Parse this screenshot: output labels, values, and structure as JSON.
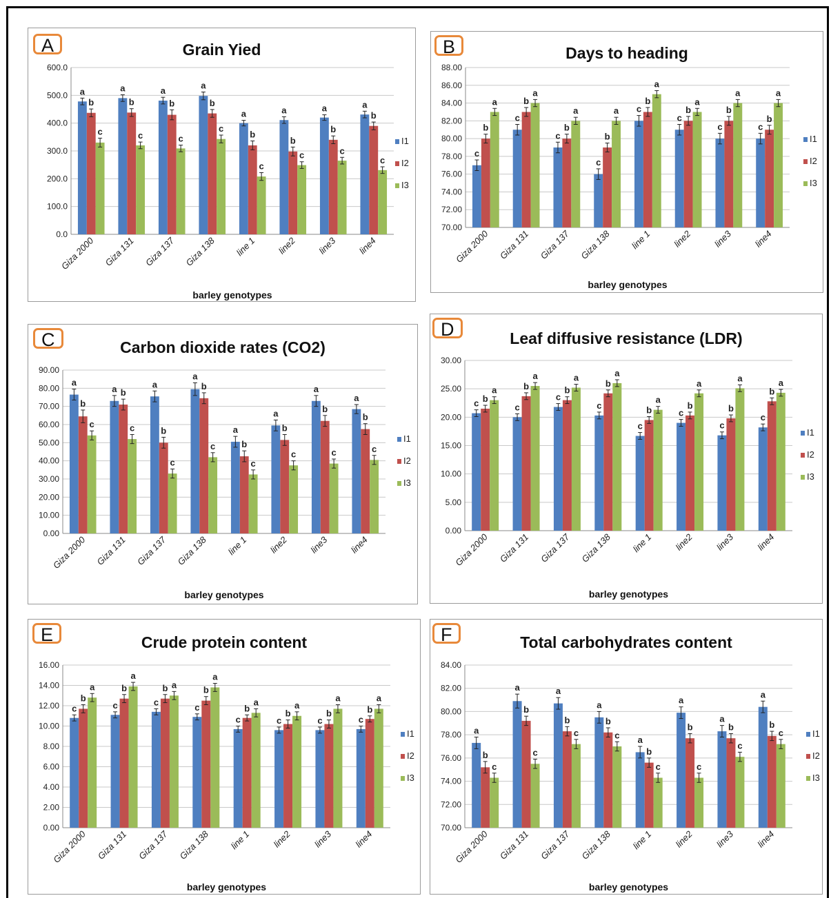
{
  "colors": {
    "I1": "#4f7fc0",
    "I2": "#c0504d",
    "I3": "#9bbb59"
  },
  "chart_data": [
    {
      "panel": "A",
      "type": "bar",
      "title": "Grain Yied",
      "xlabel": "barley genotypes",
      "ylabel": "",
      "categories": [
        "Giza 2000",
        "Giza 131",
        "Giza 137",
        "Giza 138",
        "line 1",
        "line2",
        "line3",
        "line4"
      ],
      "ylim": [
        0,
        600
      ],
      "ytick_step": 100,
      "ytick_decimals": 1,
      "legend_position": "right",
      "series": [
        {
          "name": "I1",
          "values": [
            478,
            490,
            481,
            498,
            400,
            411,
            420,
            431
          ],
          "errors": [
            12,
            12,
            12,
            14,
            10,
            12,
            10,
            12
          ],
          "letters": [
            "a",
            "a",
            "a",
            "a",
            "a",
            "a",
            "a",
            "a"
          ]
        },
        {
          "name": "I2",
          "values": [
            437,
            438,
            430,
            435,
            320,
            298,
            340,
            390
          ],
          "errors": [
            14,
            14,
            18,
            14,
            16,
            16,
            14,
            14
          ],
          "letters": [
            "b",
            "b",
            "b",
            "b",
            "b",
            "b",
            "b",
            "b"
          ]
        },
        {
          "name": "I3",
          "values": [
            330,
            320,
            309,
            343,
            208,
            249,
            265,
            231
          ],
          "errors": [
            16,
            12,
            12,
            14,
            14,
            12,
            12,
            12
          ],
          "letters": [
            "c",
            "c",
            "c",
            "c",
            "c",
            "c",
            "c",
            "c"
          ]
        }
      ]
    },
    {
      "panel": "B",
      "type": "bar",
      "title": "Days to heading",
      "xlabel": "barley genotypes",
      "ylabel": "",
      "categories": [
        "Giza 2000",
        "Giza 131",
        "Giza 137",
        "Giza 138",
        "line 1",
        "line2",
        "line3",
        "line4"
      ],
      "ylim": [
        70,
        88
      ],
      "ytick_step": 2,
      "ytick_decimals": 2,
      "legend_position": "right",
      "series": [
        {
          "name": "I1",
          "values": [
            77,
            81,
            79,
            76,
            82,
            81,
            80,
            80
          ],
          "errors": [
            0.6,
            0.6,
            0.6,
            0.6,
            0.6,
            0.6,
            0.6,
            0.6
          ],
          "letters": [
            "c",
            "c",
            "c",
            "c",
            "c",
            "c",
            "c",
            "c"
          ]
        },
        {
          "name": "I2",
          "values": [
            80,
            83,
            80,
            79,
            83,
            82,
            82,
            81
          ],
          "errors": [
            0.5,
            0.5,
            0.5,
            0.5,
            0.5,
            0.5,
            0.5,
            0.5
          ],
          "letters": [
            "b",
            "b",
            "b",
            "b",
            "b",
            "b",
            "b",
            "b"
          ]
        },
        {
          "name": "I3",
          "values": [
            83,
            84,
            82,
            82,
            85,
            83,
            84,
            84
          ],
          "errors": [
            0.4,
            0.4,
            0.4,
            0.4,
            0.4,
            0.4,
            0.4,
            0.4
          ],
          "letters": [
            "a",
            "a",
            "a",
            "a",
            "a",
            "a",
            "a",
            "a"
          ]
        }
      ]
    },
    {
      "panel": "C",
      "type": "bar",
      "title": "Carbon dioxide rates (CO2)",
      "xlabel": "barley genotypes",
      "ylabel": "",
      "categories": [
        "Giza 2000",
        "Giza 131",
        "Giza 137",
        "Giza 138",
        "line 1",
        "line2",
        "line3",
        "line4"
      ],
      "ylim": [
        0,
        90
      ],
      "ytick_step": 10,
      "ytick_decimals": 2,
      "legend_position": "right",
      "series": [
        {
          "name": "I1",
          "values": [
            76.5,
            73,
            75.5,
            79.5,
            50.5,
            59.5,
            73,
            68.5
          ],
          "errors": [
            3,
            3,
            3,
            3.5,
            3,
            3,
            3,
            2.5
          ],
          "letters": [
            "a",
            "a",
            "a",
            "a",
            "a",
            "a",
            "a",
            "a"
          ]
        },
        {
          "name": "I2",
          "values": [
            64.5,
            71,
            50,
            74.5,
            42.5,
            51.5,
            62,
            57.5
          ],
          "errors": [
            3.5,
            3,
            3,
            3,
            3,
            3,
            3,
            3
          ],
          "letters": [
            "b",
            "b",
            "b",
            "b",
            "b",
            "b",
            "b",
            "b"
          ]
        },
        {
          "name": "I3",
          "values": [
            54,
            52,
            33,
            42,
            32.5,
            37.5,
            38.5,
            40.5
          ],
          "errors": [
            2.5,
            2.5,
            2.5,
            2.5,
            2.5,
            2.5,
            2.5,
            2.5
          ],
          "letters": [
            "c",
            "c",
            "c",
            "c",
            "c",
            "c",
            "c",
            "c"
          ]
        }
      ]
    },
    {
      "panel": "D",
      "type": "bar",
      "title": "Leaf diffusive resistance  (LDR)",
      "xlabel": "barley genotypes",
      "ylabel": "",
      "categories": [
        "Giza 2000",
        "Giza 131",
        "Giza 137",
        "Giza 138",
        "line 1",
        "line2",
        "line3",
        "line4"
      ],
      "ylim": [
        0,
        30
      ],
      "ytick_step": 5,
      "ytick_decimals": 2,
      "legend_position": "right",
      "series": [
        {
          "name": "I1",
          "values": [
            20.7,
            20,
            21.8,
            20.3,
            16.7,
            19,
            16.8,
            18.2
          ],
          "errors": [
            0.6,
            0.6,
            0.6,
            0.6,
            0.6,
            0.6,
            0.6,
            0.6
          ],
          "letters": [
            "c",
            "c",
            "c",
            "c",
            "c",
            "c",
            "c",
            "c"
          ]
        },
        {
          "name": "I2",
          "values": [
            21.5,
            23.7,
            23,
            24.2,
            19.5,
            20.3,
            19.8,
            22.8
          ],
          "errors": [
            0.6,
            0.6,
            0.6,
            0.6,
            0.6,
            0.6,
            0.6,
            0.6
          ],
          "letters": [
            "b",
            "b",
            "b",
            "b",
            "b",
            "b",
            "b",
            "b"
          ]
        },
        {
          "name": "I3",
          "values": [
            23,
            25.5,
            25.2,
            26,
            21.3,
            24.2,
            25.1,
            24.3
          ],
          "errors": [
            0.6,
            0.6,
            0.6,
            0.6,
            0.6,
            0.6,
            0.6,
            0.6
          ],
          "letters": [
            "a",
            "a",
            "a",
            "a",
            "a",
            "a",
            "a",
            "a"
          ]
        }
      ]
    },
    {
      "panel": "E",
      "type": "bar",
      "title": "Crude protein content",
      "xlabel": "barley genotypes",
      "ylabel": "",
      "categories": [
        "Giza 2000",
        "Giza 131",
        "Giza 137",
        "Giza 138",
        "line 1",
        "line2",
        "line3",
        "line4"
      ],
      "ylim": [
        0,
        16
      ],
      "ytick_step": 2,
      "ytick_decimals": 2,
      "legend_position": "right",
      "series": [
        {
          "name": "I1",
          "values": [
            10.8,
            11.1,
            11.4,
            10.9,
            9.7,
            9.6,
            9.6,
            9.7
          ],
          "errors": [
            0.3,
            0.3,
            0.3,
            0.3,
            0.3,
            0.3,
            0.3,
            0.3
          ],
          "letters": [
            "c",
            "c",
            "c",
            "c",
            "c",
            "c",
            "c",
            "c"
          ]
        },
        {
          "name": "I2",
          "values": [
            11.7,
            12.7,
            12.7,
            12.5,
            10.8,
            10.2,
            10.2,
            10.7
          ],
          "errors": [
            0.4,
            0.4,
            0.4,
            0.4,
            0.3,
            0.4,
            0.4,
            0.3
          ],
          "letters": [
            "b",
            "b",
            "b",
            "b",
            "b",
            "b",
            "b",
            "b"
          ]
        },
        {
          "name": "I3",
          "values": [
            12.8,
            13.9,
            13,
            13.8,
            11.3,
            11,
            11.7,
            11.7
          ],
          "errors": [
            0.4,
            0.4,
            0.4,
            0.4,
            0.4,
            0.4,
            0.4,
            0.4
          ],
          "letters": [
            "a",
            "a",
            "a",
            "a",
            "a",
            "a",
            "a",
            "a"
          ]
        }
      ]
    },
    {
      "panel": "F",
      "type": "bar",
      "title": "Total carbohydrates content",
      "xlabel": "barley genotypes",
      "ylabel": "",
      "categories": [
        "Giza 2000",
        "Giza 131",
        "Giza 137",
        "Giza 138",
        "line 1",
        "line2",
        "line3",
        "line4"
      ],
      "ylim": [
        70,
        84
      ],
      "ytick_step": 2,
      "ytick_decimals": 2,
      "legend_position": "right",
      "series": [
        {
          "name": "I1",
          "values": [
            77.3,
            80.9,
            80.7,
            79.5,
            76.5,
            79.9,
            78.3,
            80.4
          ],
          "errors": [
            0.5,
            0.6,
            0.5,
            0.5,
            0.5,
            0.5,
            0.5,
            0.5
          ],
          "letters": [
            "a",
            "a",
            "a",
            "a",
            "a",
            "a",
            "a",
            "a"
          ]
        },
        {
          "name": "I2",
          "values": [
            75.2,
            79.2,
            78.3,
            78.2,
            75.6,
            77.7,
            77.7,
            77.9
          ],
          "errors": [
            0.5,
            0.4,
            0.4,
            0.4,
            0.4,
            0.4,
            0.4,
            0.4
          ],
          "letters": [
            "b",
            "b",
            "b",
            "b",
            "b",
            "b",
            "b",
            "b"
          ]
        },
        {
          "name": "I3",
          "values": [
            74.3,
            75.5,
            77.2,
            77,
            74.3,
            74.3,
            76.1,
            77.2
          ],
          "errors": [
            0.4,
            0.4,
            0.4,
            0.4,
            0.4,
            0.4,
            0.4,
            0.4
          ],
          "letters": [
            "c",
            "c",
            "c",
            "c",
            "c",
            "c",
            "c",
            "c"
          ]
        }
      ]
    }
  ]
}
